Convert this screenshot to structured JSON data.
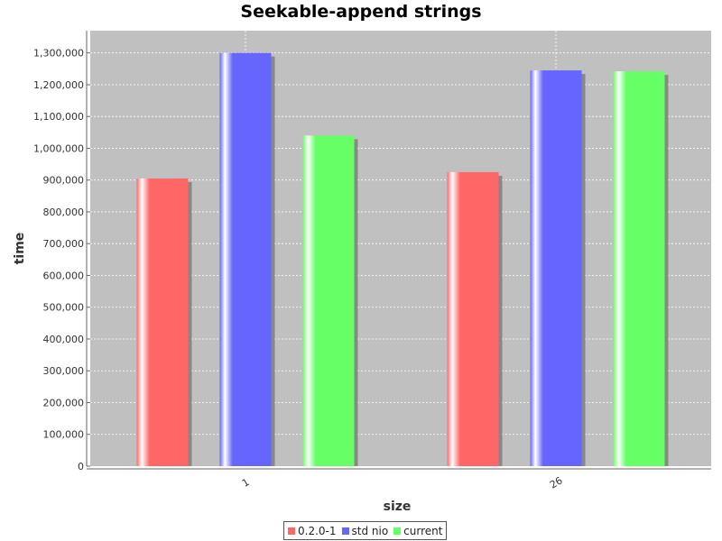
{
  "chart_data": {
    "type": "bar",
    "title": "Seekable-append strings",
    "xlabel": "size",
    "ylabel": "time",
    "categories": [
      "1",
      "26"
    ],
    "series": [
      {
        "name": "0.2.0-1",
        "color": "#ff6666",
        "values": [
          905000,
          925000
        ]
      },
      {
        "name": "std nio",
        "color": "#6666ff",
        "values": [
          1300000,
          1245000
        ]
      },
      {
        "name": "current",
        "color": "#66ff66",
        "values": [
          1040000,
          1242000
        ]
      }
    ],
    "ylim": [
      0,
      1370000
    ],
    "yticks": [
      0,
      100000,
      200000,
      300000,
      400000,
      500000,
      600000,
      700000,
      800000,
      900000,
      1000000,
      1100000,
      1200000,
      1300000
    ],
    "ytick_labels": [
      "0",
      "100,000",
      "200,000",
      "300,000",
      "400,000",
      "500,000",
      "600,000",
      "700,000",
      "800,000",
      "900,000",
      "1,000,000",
      "1,100,000",
      "1,200,000",
      "1,300,000"
    ],
    "grid": true,
    "plot_background": "#c0c0c0",
    "legend_position": "bottom"
  }
}
